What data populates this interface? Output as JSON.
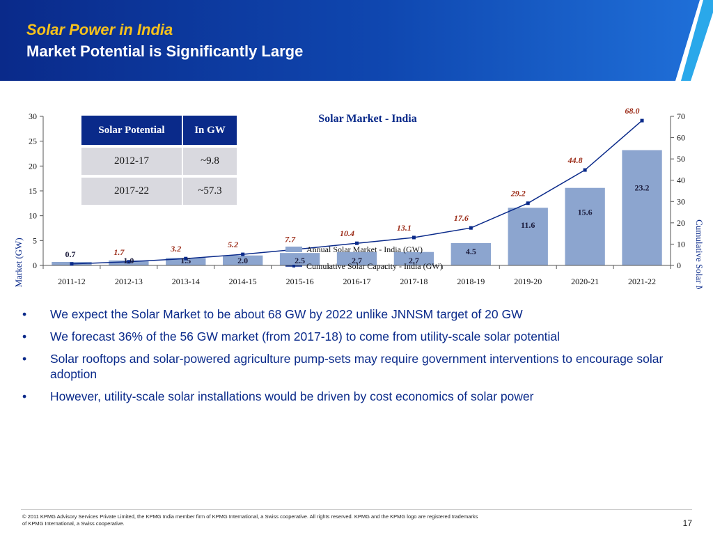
{
  "header": {
    "title": "Solar Power in India",
    "subtitle": "Market Potential is Significantly Large",
    "colors": {
      "band_dark": "#0a2a8a",
      "band_light": "#1f6fd8",
      "title": "#f7c21c",
      "stripe": "#2aa8ea"
    }
  },
  "chart_data": {
    "type": "bar",
    "title": "Solar Market - India",
    "categories": [
      "2011-12",
      "2012-13",
      "2013-14",
      "2014-15",
      "2015-16",
      "2016-17",
      "2017-18",
      "2018-19",
      "2019-20",
      "2020-21",
      "2021-22"
    ],
    "series": [
      {
        "name": "Annual Solar Market - India (GW)",
        "type": "bar",
        "axis": "left",
        "values": [
          0.7,
          1.0,
          1.5,
          2.0,
          2.5,
          2.7,
          2.7,
          4.5,
          11.6,
          15.6,
          23.2
        ],
        "color": "#8ca5cf"
      },
      {
        "name": "Cumulative Solar Capacity - India (GW)",
        "type": "line",
        "axis": "right",
        "values": [
          0.7,
          1.7,
          3.2,
          5.2,
          7.7,
          10.4,
          13.1,
          17.6,
          29.2,
          44.8,
          68.0
        ],
        "color": "#0a2a8a",
        "label_color": "#9b2a16"
      }
    ],
    "ylabel": "Annual Solar Market (GW)",
    "y2label": "Cumulative Solar Market (GW)",
    "ylim": [
      0,
      30
    ],
    "y2lim": [
      0,
      70
    ],
    "yticks": [
      0,
      5,
      10,
      15,
      20,
      25,
      30
    ],
    "y2ticks": [
      0,
      10,
      20,
      30,
      40,
      50,
      60,
      70
    ],
    "grid": false,
    "legend": "center"
  },
  "table": {
    "headers": [
      "Solar Potential",
      "In GW"
    ],
    "rows": [
      [
        "2012-17",
        "~9.8"
      ],
      [
        "2017-22",
        "~57.3"
      ]
    ]
  },
  "bullets": [
    "We expect the Solar Market to be about 68 GW by 2022 unlike JNNSM target of 20 GW",
    "We forecast 36% of the 56 GW market (from 2017-18) to come from utility-scale solar potential",
    "Solar rooftops and solar-powered agriculture pump-sets may require government interventions to encourage solar adoption",
    "However, utility-scale solar installations would be driven by cost economics of solar power"
  ],
  "bullet_char": "•",
  "footer": {
    "text": "© 2011 KPMG Advisory Services Private Limited, the KPMG India member firm of KPMG International, a Swiss cooperative. All rights reserved. KPMG and the KPMG logo are registered trademarks of KPMG International, a Swiss cooperative.",
    "page": "17"
  }
}
